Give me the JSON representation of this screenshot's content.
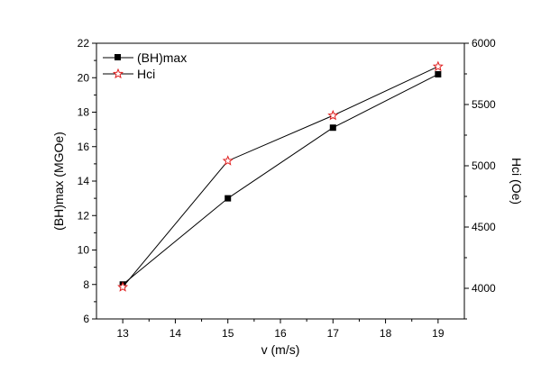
{
  "chart_data": {
    "type": "line",
    "x": [
      13,
      15,
      17,
      19
    ],
    "xlabel": "v (m/s)",
    "xlim": [
      12.5,
      19.5
    ],
    "xticks": [
      "13",
      "14",
      "15",
      "16",
      "17",
      "18",
      "19"
    ],
    "ylabel": "(BH)max (MGOe)",
    "ylim": [
      6,
      22
    ],
    "yticks": [
      "6",
      "8",
      "10",
      "12",
      "14",
      "16",
      "18",
      "20",
      "22"
    ],
    "y2label": "Hci (Oe)",
    "y2lim": [
      3750,
      6000
    ],
    "y2ticks": [
      "4000",
      "4500",
      "5000",
      "5500",
      "6000"
    ],
    "legend_position": "top-left",
    "grid": false,
    "series": [
      {
        "name": "(BH)max",
        "axis": "left",
        "marker": "filled-square",
        "color": "#000000",
        "values": [
          8.0,
          13.0,
          17.1,
          20.2
        ]
      },
      {
        "name": "Hci",
        "axis": "right",
        "marker": "open-star",
        "color": "#000000",
        "marker_color": "#e02020",
        "values": [
          4010,
          5040,
          5410,
          5810
        ]
      }
    ]
  }
}
